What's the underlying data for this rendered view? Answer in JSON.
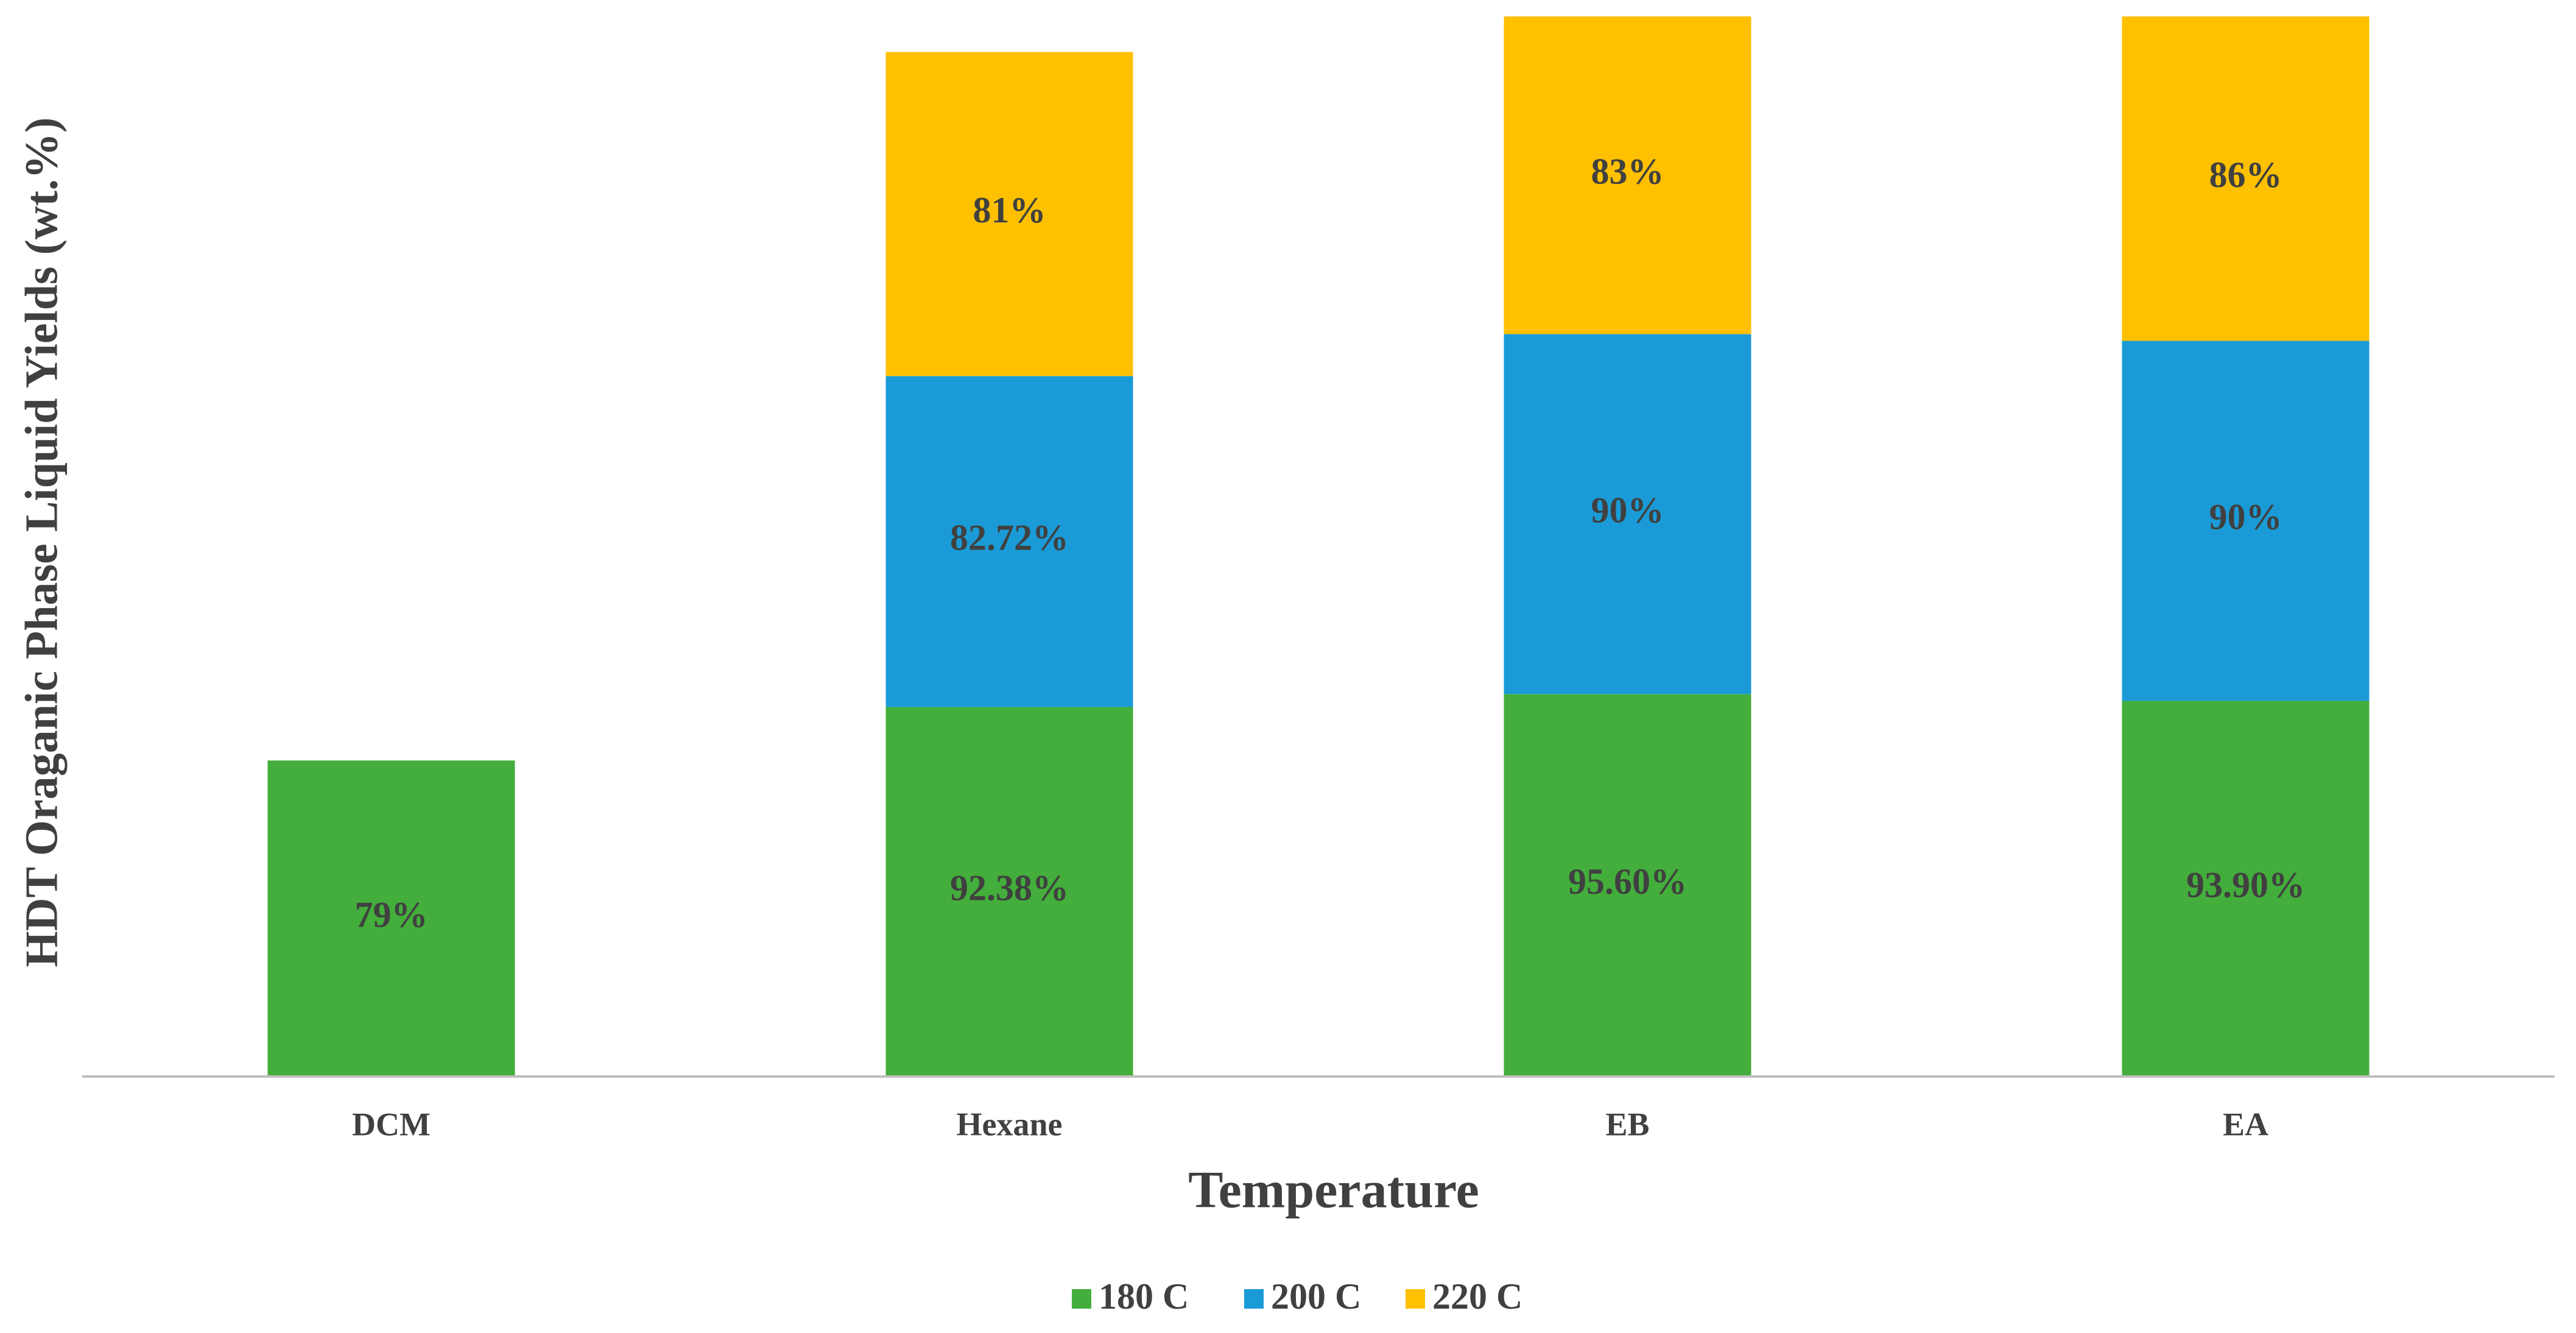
{
  "chart_data": {
    "type": "stacked_bar",
    "xlabel": "Temperature",
    "ylabel": "HDT Oraganic Phase Liquid Yields (wt.%)",
    "categories": [
      "DCM",
      "Hexane",
      "EB",
      "EA"
    ],
    "series": [
      {
        "name": "180 C",
        "color": "#43ae3b",
        "values": [
          79,
          92.38,
          95.6,
          93.9
        ],
        "value_labels": [
          "79%",
          "92.38%",
          "95.60%",
          "93.90%"
        ]
      },
      {
        "name": "200 C",
        "color": "#1a9bd7",
        "values": [
          null,
          82.72,
          90,
          90
        ],
        "value_labels": [
          null,
          "82.72%",
          "90%",
          "90%"
        ]
      },
      {
        "name": "220 C",
        "color": "#ffc000",
        "values": [
          null,
          81,
          83,
          86
        ],
        "value_labels": [
          null,
          "81%",
          "83%",
          "86%"
        ]
      }
    ],
    "ylim": [
      0,
      265
    ],
    "legend": "bottom"
  }
}
